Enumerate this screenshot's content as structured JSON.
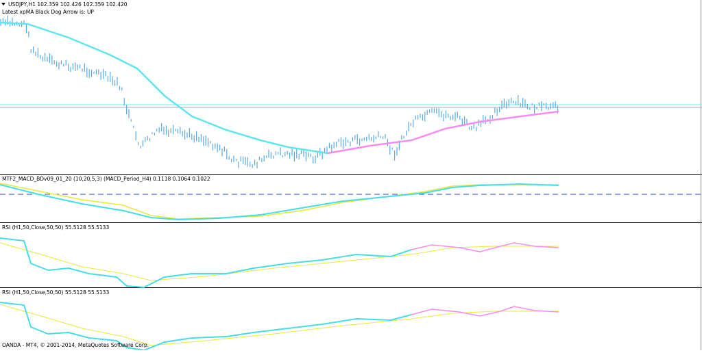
{
  "main_panel": {
    "symbol_info": "USDJPY,H1  102.359 102.426 102.359 102.420",
    "indicator_note": "Latest xpMA Black Dog Arrow is:  UP"
  },
  "macd_panel": {
    "label": "MTF2_MACD_BDv09_01_20 (10,20,5,3)  (MACD_Period_H4) 0.1118 0.1064 0.1022"
  },
  "rsi_panels": [
    {
      "label": "RSI (H1,50,Close,50,50) 55.5128 55.5133"
    },
    {
      "label": "RSI (H1,50,Close,50,50) 55.5128 55.5133"
    }
  ],
  "footer": {
    "copyright": "OANDA - MT4, © 2001-2014, MetaQuotes Software Corp."
  }
}
